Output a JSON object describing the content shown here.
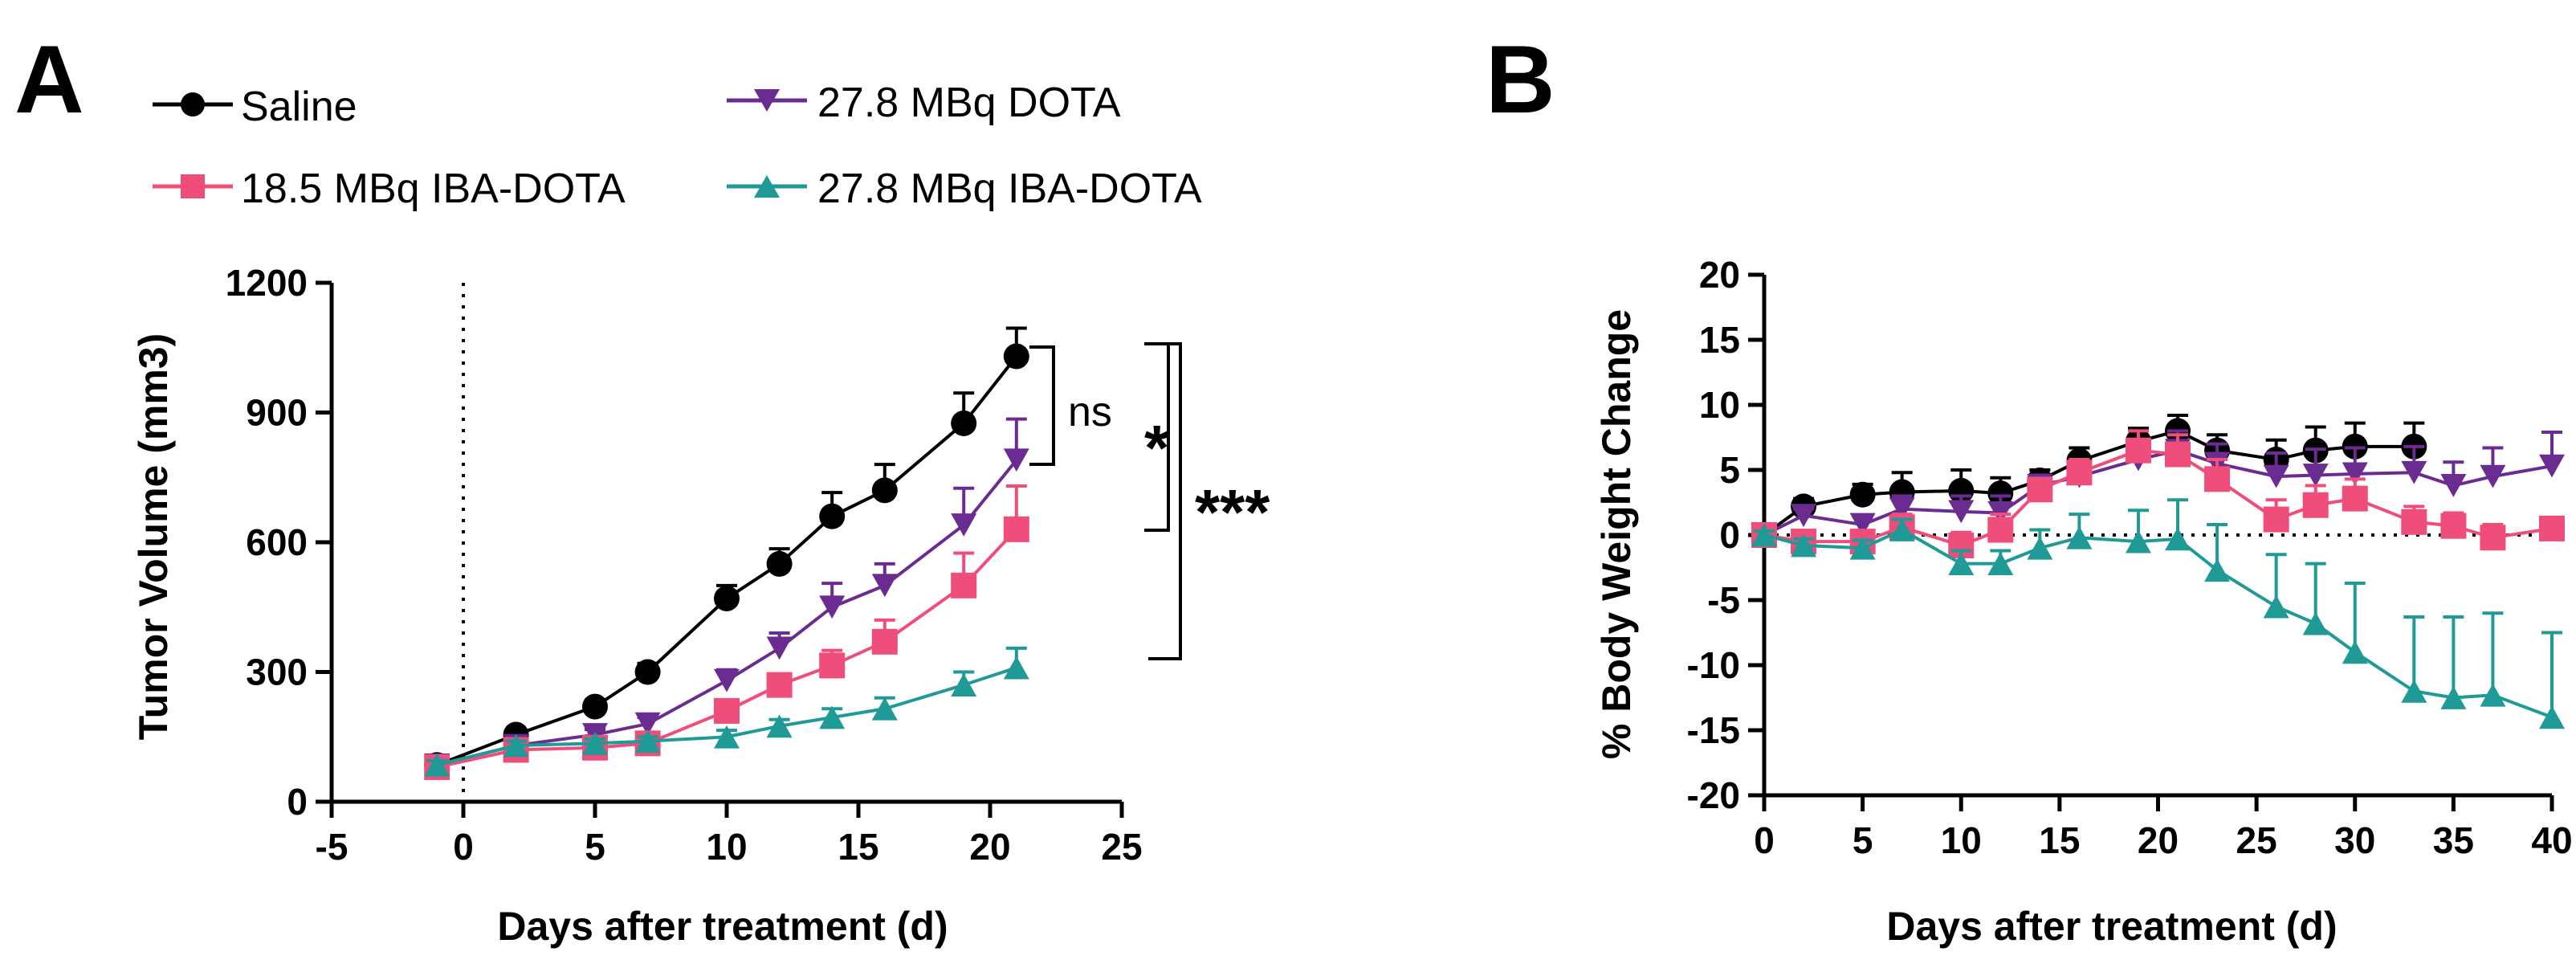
{
  "panels": {
    "a": "A",
    "b": "B"
  },
  "legend": {
    "saline": "Saline",
    "dota278": "27.8 MBq DOTA",
    "iba185": "18.5 MBq IBA-DOTA",
    "iba278": "27.8 MBq IBA-DOTA"
  },
  "significance": {
    "ns": "ns",
    "one": "*",
    "three": "***"
  },
  "chart_data": [
    {
      "type": "line",
      "title": "",
      "xlabel": "Days after treatment (d)",
      "ylabel": "Tumor Volume (mm3)",
      "xlim": [
        -5,
        25
      ],
      "ylim": [
        0,
        1200
      ],
      "xticks": [
        -5,
        0,
        5,
        10,
        15,
        20,
        25
      ],
      "yticks": [
        0,
        300,
        600,
        900,
        1200
      ],
      "vline_x": 0,
      "series": [
        {
          "name": "Saline",
          "color": "#000000",
          "marker": "circle",
          "x": [
            -1,
            2,
            5,
            7,
            10,
            12,
            14,
            16,
            19,
            21
          ],
          "y": [
            85,
            155,
            220,
            300,
            470,
            550,
            660,
            720,
            875,
            1030
          ],
          "err": [
            10,
            12,
            15,
            20,
            30,
            35,
            55,
            60,
            70,
            65
          ]
        },
        {
          "name": "27.8 MBq DOTA",
          "color": "#6a2c91",
          "marker": "triangle-down",
          "x": [
            -1,
            2,
            5,
            7,
            10,
            12,
            14,
            16,
            19,
            21
          ],
          "y": [
            85,
            130,
            155,
            180,
            280,
            355,
            450,
            500,
            640,
            790
          ],
          "err": [
            10,
            10,
            12,
            15,
            25,
            35,
            55,
            50,
            85,
            95
          ]
        },
        {
          "name": "18.5 MBq IBA-DOTA",
          "color": "#ef4d7a",
          "marker": "square",
          "x": [
            -1,
            2,
            5,
            7,
            10,
            12,
            14,
            16,
            19,
            21
          ],
          "y": [
            80,
            120,
            125,
            135,
            210,
            270,
            315,
            370,
            500,
            630
          ],
          "err": [
            10,
            10,
            10,
            12,
            20,
            25,
            35,
            50,
            75,
            100
          ]
        },
        {
          "name": "27.8 MBq IBA-DOTA",
          "color": "#1f9a96",
          "marker": "triangle-up",
          "x": [
            -1,
            2,
            5,
            7,
            10,
            12,
            14,
            16,
            19,
            21
          ],
          "y": [
            85,
            130,
            135,
            140,
            150,
            175,
            195,
            215,
            270,
            310
          ],
          "err": [
            10,
            10,
            10,
            10,
            15,
            15,
            20,
            25,
            30,
            45
          ]
        }
      ]
    },
    {
      "type": "line",
      "title": "",
      "xlabel": "Days after treatment (d)",
      "ylabel": "% Body Weight Change",
      "xlim": [
        0,
        40
      ],
      "ylim": [
        -20,
        20
      ],
      "xticks": [
        0,
        5,
        10,
        15,
        20,
        25,
        30,
        35,
        40
      ],
      "yticks": [
        -20,
        -15,
        -10,
        -5,
        0,
        5,
        10,
        15,
        20
      ],
      "hline_y": 0,
      "series": [
        {
          "name": "Saline",
          "color": "#000000",
          "marker": "circle",
          "x": [
            0,
            2,
            5,
            7,
            10,
            12,
            14,
            16,
            19,
            21,
            23,
            26,
            28,
            30,
            33
          ],
          "y": [
            0,
            2.2,
            3.1,
            3.3,
            3.4,
            3.2,
            4.2,
            5.7,
            7.2,
            8.0,
            6.5,
            5.8,
            6.5,
            6.8,
            6.8
          ],
          "err": [
            0.3,
            0.6,
            0.8,
            1.5,
            1.6,
            1.2,
            0.8,
            1.0,
            1.0,
            1.2,
            1.2,
            1.5,
            1.8,
            1.8,
            1.8
          ]
        },
        {
          "name": "27.8 MBq DOTA",
          "color": "#6a2c91",
          "marker": "triangle-down",
          "x": [
            0,
            2,
            5,
            7,
            10,
            12,
            14,
            16,
            19,
            21,
            23,
            26,
            28,
            30,
            33,
            35,
            37,
            40
          ],
          "y": [
            0,
            1.5,
            0.8,
            2.0,
            1.8,
            1.7,
            3.8,
            4.5,
            5.8,
            6.5,
            5.5,
            4.5,
            4.6,
            4.7,
            4.8,
            3.8,
            4.5,
            5.3
          ],
          "err": [
            0.3,
            0.5,
            0.6,
            1.0,
            1.2,
            1.3,
            0.8,
            1.0,
            1.2,
            1.5,
            1.5,
            1.8,
            2.0,
            2.0,
            2.0,
            1.8,
            2.2,
            2.6
          ]
        },
        {
          "name": "18.5 MBq IBA-DOTA",
          "color": "#ef4d7a",
          "marker": "square",
          "x": [
            0,
            2,
            5,
            7,
            10,
            12,
            14,
            16,
            19,
            21,
            23,
            26,
            28,
            30,
            33,
            35,
            37,
            40
          ],
          "y": [
            0,
            -0.5,
            -0.5,
            0.6,
            -0.8,
            0.4,
            3.5,
            4.8,
            6.5,
            6.2,
            4.3,
            1.2,
            2.3,
            2.8,
            1.0,
            0.7,
            -0.2,
            0.5
          ],
          "err": [
            0.3,
            0.5,
            0.6,
            1.0,
            1.0,
            1.2,
            0.8,
            1.0,
            1.5,
            1.5,
            1.5,
            1.5,
            1.5,
            1.5,
            1.2,
            1.0,
            1.0,
            0.8
          ]
        },
        {
          "name": "27.8 MBq IBA-DOTA",
          "color": "#1f9a96",
          "marker": "triangle-up",
          "x": [
            0,
            2,
            5,
            7,
            10,
            12,
            14,
            16,
            19,
            21,
            23,
            26,
            28,
            30,
            33,
            35,
            37,
            40
          ],
          "y": [
            0,
            -0.8,
            -1.0,
            0.4,
            -2.2,
            -2.2,
            -1.0,
            -0.2,
            -0.5,
            -0.3,
            -2.7,
            -5.5,
            -6.8,
            -9.0,
            -12.0,
            -12.5,
            -12.3,
            -14.0
          ],
          "err": [
            0.3,
            0.5,
            0.6,
            0.8,
            1.0,
            1.0,
            1.4,
            1.8,
            2.4,
            3.0,
            3.5,
            4.0,
            4.6,
            5.3,
            5.7,
            6.2,
            6.3,
            6.5
          ]
        }
      ]
    }
  ]
}
